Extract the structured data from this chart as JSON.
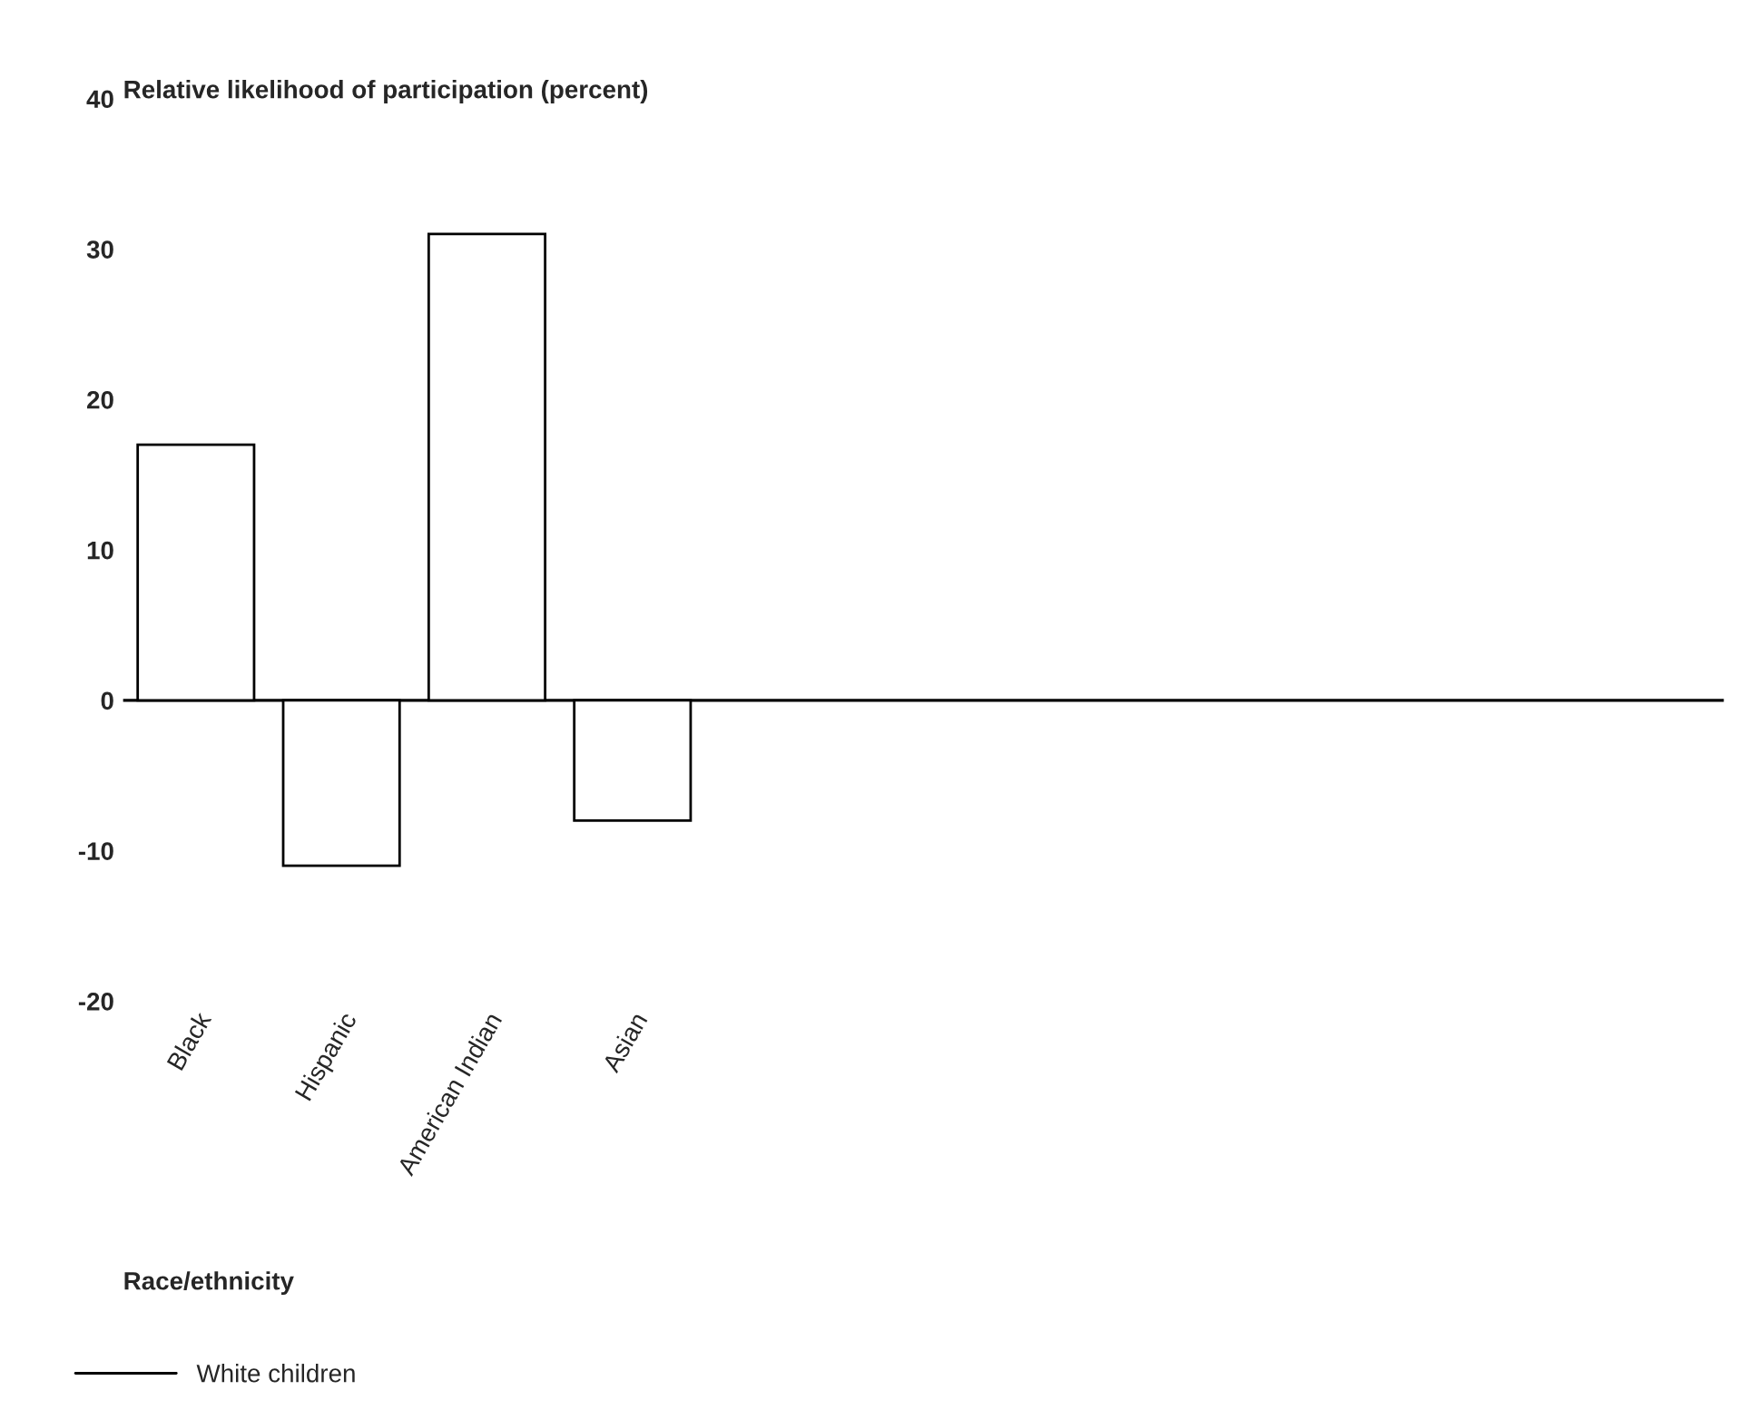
{
  "chart_data": {
    "type": "bar",
    "ylabel": "Relative likelihood of participation (percent)",
    "xlabel": "Race/ethnicity",
    "categories": [
      "Black",
      "Hispanic",
      "American Indian",
      "Asian"
    ],
    "values": [
      17,
      -11,
      31,
      -8
    ],
    "color": "#ffffff",
    "ylim": [
      -20,
      40
    ],
    "yticks": [
      -20,
      -10,
      0,
      10,
      20,
      30,
      40
    ],
    "grid": false,
    "ref_lines": [
      {
        "axis": "y",
        "value": 0,
        "label": "White children",
        "color": "#000000"
      }
    ],
    "legend": "bottom left"
  }
}
